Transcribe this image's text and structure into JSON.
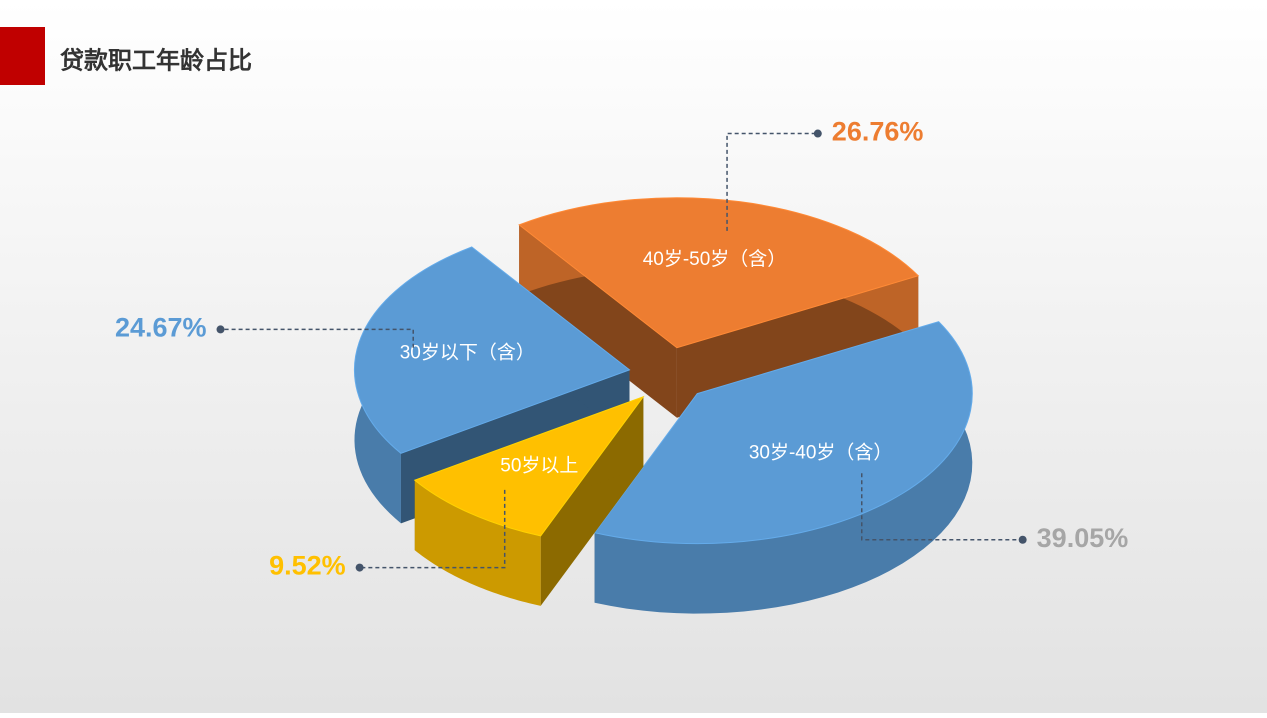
{
  "chart_data": {
    "type": "pie",
    "title": "贷款职工年龄占比",
    "categories": [
      "40岁-50岁（含）",
      "30岁-40岁（含）",
      "50岁以上",
      "30岁以下（含）"
    ],
    "values": [
      26.76,
      39.05,
      9.52,
      24.67
    ],
    "value_labels": [
      "26.76%",
      "39.05%",
      "9.52%",
      "24.67%"
    ],
    "colors": [
      "#ED7D31",
      "#5B9BD5",
      "#FFC000",
      "#5B9BD5"
    ],
    "label_colors": [
      "#ED7D31",
      "#A6A6A6",
      "#FFC000",
      "#5B9BD5"
    ]
  }
}
